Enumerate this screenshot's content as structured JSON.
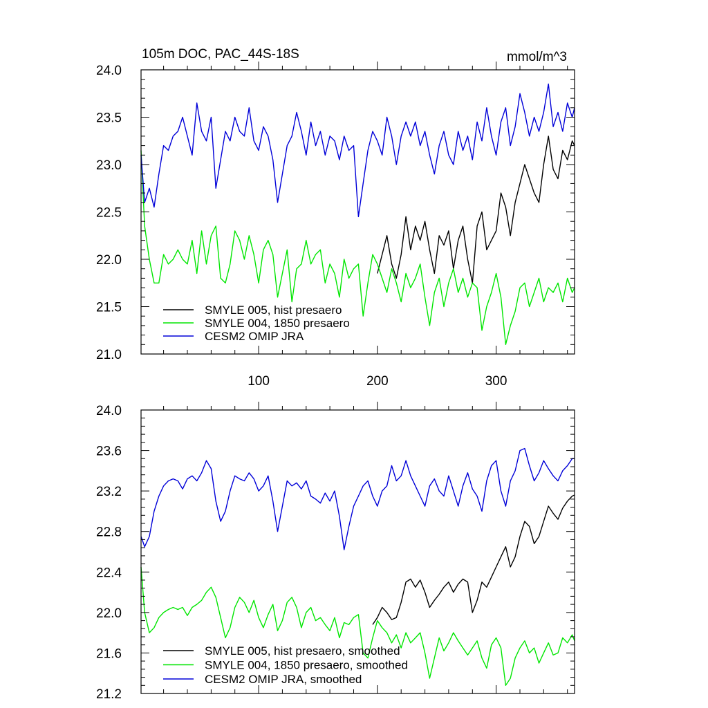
{
  "chart_data": [
    {
      "type": "line",
      "title": "105m DOC, PAC_44S-18S",
      "units": "mmol/m^3",
      "xlim": [
        1,
        366
      ],
      "ylim": [
        21.0,
        24.0
      ],
      "xticks": [
        100,
        200,
        300
      ],
      "xtick_labels": [
        "100",
        "200",
        "300"
      ],
      "yticks": [
        21.0,
        21.5,
        22.0,
        22.5,
        23.0,
        23.5,
        24.0
      ],
      "ytick_labels": [
        "21.0",
        "21.5",
        "22.0",
        "22.5",
        "23.0",
        "23.5",
        "24.0"
      ],
      "grid": false,
      "legend_position": "lower-left",
      "series": [
        {
          "name": "SMYLE 005, hist presaero",
          "color": "#000000",
          "x": [
            200,
            208,
            212,
            216,
            220,
            224,
            228,
            232,
            236,
            240,
            244,
            248,
            252,
            256,
            260,
            264,
            268,
            272,
            276,
            280,
            284,
            288,
            292,
            296,
            300,
            304,
            308,
            312,
            316,
            320,
            324,
            328,
            332,
            336,
            340,
            344,
            348,
            352,
            356,
            360,
            364,
            366
          ],
          "values": [
            21.85,
            22.25,
            21.95,
            21.8,
            22.05,
            22.45,
            22.1,
            22.35,
            22.2,
            22.4,
            22.1,
            21.85,
            22.25,
            22.15,
            22.3,
            21.9,
            22.2,
            22.35,
            22.0,
            21.75,
            22.35,
            22.5,
            22.1,
            22.2,
            22.3,
            22.7,
            22.55,
            22.25,
            22.6,
            22.8,
            23.0,
            22.85,
            22.7,
            22.6,
            23.0,
            23.3,
            22.95,
            22.85,
            23.15,
            23.05,
            23.25,
            23.2
          ]
        },
        {
          "name": "SMYLE 004, 1850 presaero",
          "color": "#00e600",
          "x": [
            1,
            4,
            8,
            12,
            16,
            20,
            24,
            28,
            32,
            36,
            40,
            44,
            48,
            52,
            56,
            60,
            64,
            68,
            72,
            76,
            80,
            84,
            88,
            92,
            96,
            100,
            104,
            108,
            112,
            116,
            120,
            124,
            128,
            132,
            136,
            140,
            144,
            148,
            152,
            156,
            160,
            164,
            168,
            172,
            176,
            180,
            184,
            188,
            192,
            196,
            200,
            204,
            208,
            212,
            216,
            220,
            224,
            228,
            232,
            236,
            240,
            244,
            248,
            252,
            256,
            260,
            264,
            268,
            272,
            276,
            280,
            284,
            288,
            292,
            296,
            300,
            304,
            308,
            312,
            316,
            320,
            324,
            328,
            332,
            336,
            340,
            344,
            348,
            352,
            356,
            360,
            364,
            366
          ],
          "values": [
            23.15,
            22.35,
            22.0,
            21.75,
            21.75,
            22.05,
            21.95,
            22.0,
            22.1,
            22.0,
            21.95,
            22.2,
            21.85,
            22.3,
            21.95,
            22.25,
            22.35,
            21.8,
            21.75,
            21.95,
            22.3,
            22.2,
            22.0,
            22.25,
            22.05,
            21.75,
            22.1,
            22.2,
            22.05,
            21.6,
            21.85,
            22.1,
            21.55,
            21.9,
            21.95,
            22.2,
            21.95,
            22.05,
            22.1,
            21.75,
            21.95,
            21.85,
            21.6,
            22.0,
            21.8,
            21.9,
            21.95,
            21.4,
            21.75,
            22.05,
            21.95,
            21.8,
            21.65,
            21.9,
            21.75,
            21.55,
            21.85,
            21.7,
            21.8,
            21.95,
            21.6,
            21.3,
            21.65,
            21.8,
            21.5,
            21.75,
            21.9,
            21.65,
            21.8,
            21.6,
            21.75,
            21.7,
            21.25,
            21.5,
            21.65,
            21.85,
            21.6,
            21.1,
            21.3,
            21.45,
            21.7,
            21.75,
            21.5,
            21.65,
            21.8,
            21.55,
            21.7,
            21.65,
            21.75,
            21.55,
            21.8,
            21.65,
            21.7
          ]
        },
        {
          "name": "CESM2 OMIP JRA",
          "color": "#0000d8",
          "x": [
            1,
            4,
            8,
            12,
            16,
            20,
            24,
            28,
            32,
            36,
            40,
            44,
            48,
            52,
            56,
            60,
            64,
            68,
            72,
            76,
            80,
            84,
            88,
            92,
            96,
            100,
            104,
            108,
            112,
            116,
            120,
            124,
            128,
            132,
            136,
            140,
            144,
            148,
            152,
            156,
            160,
            164,
            168,
            172,
            176,
            180,
            184,
            188,
            192,
            196,
            200,
            204,
            208,
            212,
            216,
            220,
            224,
            228,
            232,
            236,
            240,
            244,
            248,
            252,
            256,
            260,
            264,
            268,
            272,
            276,
            280,
            284,
            288,
            292,
            296,
            300,
            304,
            308,
            312,
            316,
            320,
            324,
            328,
            332,
            336,
            340,
            344,
            348,
            352,
            356,
            360,
            364,
            366
          ],
          "values": [
            23.1,
            22.6,
            22.75,
            22.55,
            22.9,
            23.2,
            23.15,
            23.3,
            23.35,
            23.5,
            23.3,
            23.1,
            23.65,
            23.35,
            23.25,
            23.5,
            22.75,
            23.05,
            23.35,
            23.25,
            23.5,
            23.35,
            23.3,
            23.6,
            23.25,
            23.15,
            23.4,
            23.3,
            23.05,
            22.6,
            22.9,
            23.2,
            23.3,
            23.55,
            23.35,
            23.1,
            23.45,
            23.2,
            23.35,
            23.1,
            23.3,
            23.25,
            23.05,
            23.3,
            23.15,
            23.2,
            22.45,
            22.8,
            23.15,
            23.35,
            23.25,
            23.1,
            23.5,
            23.3,
            23.0,
            23.3,
            23.45,
            23.3,
            23.45,
            23.2,
            23.35,
            23.1,
            22.9,
            23.2,
            23.35,
            23.1,
            23.0,
            23.35,
            23.15,
            23.3,
            23.05,
            23.45,
            23.25,
            23.6,
            23.3,
            23.1,
            23.45,
            23.6,
            23.2,
            23.4,
            23.75,
            23.55,
            23.3,
            23.5,
            23.35,
            23.55,
            23.85,
            23.4,
            23.55,
            23.35,
            23.65,
            23.5,
            23.6
          ]
        }
      ]
    },
    {
      "type": "line",
      "xlim": [
        1,
        366
      ],
      "ylim": [
        21.2,
        24.0
      ],
      "xticks": [
        100,
        200,
        300
      ],
      "yticks": [
        21.2,
        21.6,
        22.0,
        22.4,
        22.8,
        23.2,
        23.6,
        24.0
      ],
      "ytick_labels": [
        "21.2",
        "21.6",
        "22.0",
        "22.4",
        "22.8",
        "23.2",
        "23.6",
        "24.0"
      ],
      "grid": false,
      "legend_position": "lower-left",
      "series": [
        {
          "name": "SMYLE 005, hist presaero, smoothed",
          "color": "#000000",
          "x": [
            196,
            200,
            204,
            208,
            212,
            216,
            220,
            224,
            228,
            232,
            236,
            240,
            244,
            248,
            252,
            256,
            260,
            264,
            268,
            272,
            276,
            280,
            284,
            288,
            292,
            296,
            300,
            304,
            308,
            312,
            316,
            320,
            324,
            328,
            332,
            336,
            340,
            344,
            348,
            352,
            356,
            360,
            364,
            366
          ],
          "values": [
            21.88,
            21.95,
            22.05,
            22.0,
            21.93,
            21.95,
            22.1,
            22.3,
            22.33,
            22.25,
            22.32,
            22.2,
            22.05,
            22.12,
            22.18,
            22.25,
            22.3,
            22.2,
            22.28,
            22.33,
            22.3,
            22.0,
            22.12,
            22.3,
            22.25,
            22.35,
            22.45,
            22.55,
            22.65,
            22.45,
            22.55,
            22.75,
            22.9,
            22.85,
            22.68,
            22.75,
            22.9,
            23.05,
            22.98,
            22.92,
            23.03,
            23.1,
            23.15,
            23.16
          ]
        },
        {
          "name": "SMYLE 004, 1850 presaero, smoothed",
          "color": "#00e600",
          "x": [
            1,
            4,
            8,
            12,
            16,
            20,
            24,
            28,
            32,
            36,
            40,
            44,
            48,
            52,
            56,
            60,
            64,
            68,
            72,
            76,
            80,
            84,
            88,
            92,
            96,
            100,
            104,
            108,
            112,
            116,
            120,
            124,
            128,
            132,
            136,
            140,
            144,
            148,
            152,
            156,
            160,
            164,
            168,
            172,
            176,
            180,
            184,
            188,
            192,
            196,
            200,
            204,
            208,
            212,
            216,
            220,
            224,
            228,
            232,
            236,
            240,
            244,
            248,
            252,
            256,
            260,
            264,
            268,
            272,
            276,
            280,
            284,
            288,
            292,
            296,
            300,
            304,
            308,
            312,
            316,
            320,
            324,
            328,
            332,
            336,
            340,
            344,
            348,
            352,
            356,
            360,
            364,
            366
          ],
          "values": [
            22.45,
            22.0,
            21.8,
            21.85,
            21.95,
            22.0,
            22.03,
            22.05,
            22.03,
            22.05,
            21.97,
            22.05,
            22.08,
            22.12,
            22.2,
            22.25,
            22.15,
            21.95,
            21.75,
            21.85,
            22.05,
            22.15,
            22.1,
            22.0,
            22.12,
            21.95,
            21.85,
            21.98,
            22.08,
            21.82,
            21.92,
            22.1,
            22.15,
            22.05,
            21.85,
            22.0,
            22.05,
            21.92,
            21.95,
            21.88,
            21.82,
            21.95,
            21.75,
            21.9,
            21.88,
            21.95,
            21.98,
            21.6,
            21.55,
            21.75,
            21.92,
            21.85,
            21.8,
            21.7,
            21.78,
            21.65,
            21.8,
            21.7,
            21.75,
            21.8,
            21.6,
            21.35,
            21.55,
            21.75,
            21.62,
            21.7,
            21.8,
            21.72,
            21.65,
            21.58,
            21.65,
            21.72,
            21.55,
            21.45,
            21.68,
            21.75,
            21.65,
            21.28,
            21.35,
            21.55,
            21.65,
            21.72,
            21.6,
            21.65,
            21.5,
            21.6,
            21.7,
            21.58,
            21.6,
            21.75,
            21.7,
            21.78,
            21.72
          ]
        },
        {
          "name": "CESM2 OMIP JRA, smoothed",
          "color": "#0000d8",
          "x": [
            1,
            4,
            8,
            12,
            16,
            20,
            24,
            28,
            32,
            36,
            40,
            44,
            48,
            52,
            56,
            60,
            64,
            68,
            72,
            76,
            80,
            84,
            88,
            92,
            96,
            100,
            104,
            108,
            112,
            116,
            120,
            124,
            128,
            132,
            136,
            140,
            144,
            148,
            152,
            156,
            160,
            164,
            168,
            172,
            176,
            180,
            184,
            188,
            192,
            196,
            200,
            204,
            208,
            212,
            216,
            220,
            224,
            228,
            232,
            236,
            240,
            244,
            248,
            252,
            256,
            260,
            264,
            268,
            272,
            276,
            280,
            284,
            288,
            292,
            296,
            300,
            304,
            308,
            312,
            316,
            320,
            324,
            328,
            332,
            336,
            340,
            344,
            348,
            352,
            356,
            360,
            364,
            366
          ],
          "values": [
            22.75,
            22.65,
            22.75,
            23.0,
            23.15,
            23.25,
            23.3,
            23.32,
            23.3,
            23.22,
            23.32,
            23.35,
            23.3,
            23.38,
            23.5,
            23.42,
            23.1,
            22.9,
            23.0,
            23.2,
            23.35,
            23.32,
            23.3,
            23.38,
            23.32,
            23.2,
            23.25,
            23.35,
            23.1,
            22.8,
            23.05,
            23.3,
            23.25,
            23.28,
            23.22,
            23.3,
            23.15,
            23.12,
            23.08,
            23.18,
            23.1,
            23.2,
            22.95,
            22.62,
            22.85,
            23.05,
            23.15,
            23.25,
            23.3,
            23.15,
            23.05,
            23.2,
            23.25,
            23.45,
            23.3,
            23.35,
            23.5,
            23.35,
            23.25,
            23.15,
            23.05,
            23.25,
            23.32,
            23.2,
            23.15,
            23.35,
            23.2,
            23.05,
            23.25,
            23.38,
            23.22,
            23.15,
            23.0,
            23.3,
            23.45,
            23.5,
            23.2,
            23.05,
            23.3,
            23.4,
            23.6,
            23.62,
            23.45,
            23.3,
            23.38,
            23.5,
            23.42,
            23.35,
            23.3,
            23.4,
            23.45,
            23.52,
            23.52
          ]
        }
      ]
    }
  ]
}
